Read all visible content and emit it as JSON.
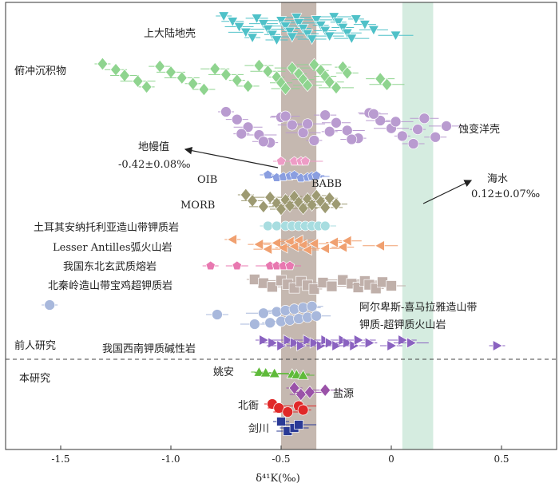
{
  "chart_data": {
    "type": "scatter",
    "xlabel": "δ⁴¹K(‰)",
    "xlim": [
      -1.75,
      0.75
    ],
    "x_ticks": [
      "-1.5",
      "-1.0",
      "-0.5",
      "0",
      "0.5"
    ],
    "x_tick_values": [
      -1.5,
      -1.0,
      -0.5,
      0,
      0.5
    ],
    "mantle_band": [
      -0.5,
      -0.34
    ],
    "seawater_band": [
      0.05,
      0.19
    ],
    "colors": {
      "upper_crust": "#4fc1c8",
      "sediments": "#8fd48f",
      "altered_oc": "#b99bd0",
      "babb": "#ee9cc6",
      "oib": "#8a9ee0",
      "morb": "#9d9a72",
      "turkey": "#a8dde0",
      "lesser_antilles": "#f0a070",
      "ne_china": "#e878b0",
      "qinling": "#c0b0aa",
      "alpine": "#a8b8dc",
      "sw_china": "#8a62c0",
      "yaoan": "#5fba3a",
      "yanyuan": "#9a52a8",
      "beiya": "#e02828",
      "jianchuan": "#2a3a96",
      "mantle_band": "#c5b8b0",
      "seawater_band": "#d5ece0"
    },
    "labels": {
      "upper_crust": "上大陆地壳",
      "sediments": "俯冲沉积物",
      "altered_oc": "蚀变洋壳",
      "mantle_value": "地幔值",
      "mantle_value_num": "-0.42±0.08‰",
      "babb": "BABB",
      "oib": "OIB",
      "morb": "MORB",
      "seawater": "海水",
      "seawater_num": "0.12±0.07‰",
      "turkey": "土耳其安纳托利亚造山带钾质岩",
      "lesser_antilles": "Lesser Antilles弧火山岩",
      "ne_china": "我国东北玄武质熔岩",
      "qinling": "北秦岭造山带宝鸡超钾质岩",
      "alpine_1": "阿尔卑斯-喜马拉雅造山带",
      "alpine_2": "钾质-超钾质火山岩",
      "previous": "前人研究",
      "sw_china": "我国西南钾质碱性岩",
      "this_study": "本研究",
      "yaoan": "姚安",
      "yanyuan": "盐源",
      "beiya": "北衙",
      "jianchuan": "剑川"
    },
    "groups": [
      {
        "key": "upper_crust",
        "marker": "triangle-down",
        "values": [
          -0.76,
          -0.72,
          -0.69,
          -0.66,
          -0.63,
          -0.61,
          -0.58,
          -0.56,
          -0.54,
          -0.52,
          -0.5,
          -0.48,
          -0.46,
          -0.45,
          -0.43,
          -0.42,
          -0.4,
          -0.38,
          -0.36,
          -0.34,
          -0.32,
          -0.3,
          -0.28,
          -0.26,
          -0.24,
          -0.22,
          -0.2,
          -0.18,
          -0.16,
          -0.12,
          -0.08,
          0.02
        ]
      },
      {
        "key": "sediments",
        "marker": "diamond",
        "values": [
          -1.31,
          -1.25,
          -1.21,
          -1.15,
          -1.11,
          -1.05,
          -1.0,
          -0.95,
          -0.9,
          -0.85,
          -0.8,
          -0.75,
          -0.7,
          -0.65,
          -0.6,
          -0.56,
          -0.52,
          -0.5,
          -0.48,
          -0.45,
          -0.42,
          -0.4,
          -0.38,
          -0.35,
          -0.32,
          -0.3,
          -0.28,
          -0.25,
          -0.22,
          -0.2,
          -0.05,
          -0.02
        ]
      },
      {
        "key": "altered_oc",
        "marker": "circle",
        "values": [
          -0.75,
          -0.7,
          -0.65,
          -0.6,
          -0.55,
          -0.5,
          -0.45,
          -0.4,
          -0.35,
          -0.3,
          -0.25,
          -0.2,
          -0.15,
          -0.1,
          -0.05,
          0.0,
          0.05,
          0.1,
          0.15,
          0.25,
          -0.68,
          -0.58,
          -0.48,
          -0.38,
          -0.28,
          -0.18,
          -0.08,
          0.02,
          0.12,
          0.2
        ]
      },
      {
        "key": "babb",
        "marker": "pentagon",
        "values": [
          -0.5,
          -0.44,
          -0.41,
          -0.39
        ]
      },
      {
        "key": "oib",
        "marker": "pentagon",
        "values": [
          -0.56,
          -0.52,
          -0.49,
          -0.46,
          -0.44,
          -0.41,
          -0.38,
          -0.36,
          -0.34
        ]
      },
      {
        "key": "morb",
        "marker": "diamond",
        "values": [
          -0.66,
          -0.63,
          -0.58,
          -0.55,
          -0.52,
          -0.5,
          -0.48,
          -0.46,
          -0.44,
          -0.42,
          -0.4,
          -0.38,
          -0.36,
          -0.34,
          -0.32,
          -0.3,
          -0.28,
          -0.25
        ]
      },
      {
        "key": "turkey",
        "marker": "circle",
        "values": [
          -0.56,
          -0.52,
          -0.48,
          -0.45,
          -0.42,
          -0.39,
          -0.36,
          -0.33,
          -0.3
        ]
      },
      {
        "key": "lesser_antilles",
        "marker": "triangle-left",
        "values": [
          -0.72,
          -0.6,
          -0.56,
          -0.52,
          -0.49,
          -0.46,
          -0.44,
          -0.42,
          -0.4,
          -0.38,
          -0.35,
          -0.3,
          -0.26,
          -0.22,
          -0.2,
          -0.05
        ]
      },
      {
        "key": "ne_china",
        "marker": "pentagon",
        "values": [
          -0.82,
          -0.7,
          -0.55,
          -0.52,
          -0.49,
          -0.46
        ]
      },
      {
        "key": "qinling",
        "marker": "square",
        "values": [
          -0.62,
          -0.58,
          -0.54,
          -0.5,
          -0.47,
          -0.44,
          -0.41,
          -0.38,
          -0.35,
          -0.31,
          -0.27,
          -0.22,
          -0.18,
          -0.15,
          -0.12,
          -0.1,
          -0.07,
          -0.04,
          0.0
        ]
      },
      {
        "key": "alpine",
        "marker": "circle",
        "values": [
          -1.55,
          -0.79,
          -0.62,
          -0.58,
          -0.55,
          -0.52,
          -0.5,
          -0.48,
          -0.46,
          -0.44,
          -0.42,
          -0.4,
          -0.38,
          -0.36,
          -0.34
        ]
      },
      {
        "key": "sw_china",
        "marker": "triangle-right",
        "values": [
          -0.58,
          -0.54,
          -0.5,
          -0.47,
          -0.44,
          -0.41,
          -0.38,
          -0.35,
          -0.32,
          -0.3,
          -0.28,
          -0.25,
          -0.22,
          -0.2,
          -0.17,
          -0.15,
          -0.1,
          0.0,
          0.05,
          0.09,
          0.48
        ]
      },
      {
        "key": "yaoan",
        "marker": "triangle-up",
        "values": [
          -0.6,
          -0.57,
          -0.53,
          -0.45,
          -0.43,
          -0.4
        ]
      },
      {
        "key": "yanyuan",
        "marker": "diamond",
        "values": [
          -0.44,
          -0.41,
          -0.37,
          -0.3
        ]
      },
      {
        "key": "beiya",
        "marker": "circle",
        "values": [
          -0.54,
          -0.51,
          -0.47,
          -0.42,
          -0.4
        ]
      },
      {
        "key": "jianchuan",
        "marker": "square",
        "values": [
          -0.5,
          -0.47,
          -0.44,
          -0.42
        ]
      }
    ]
  }
}
